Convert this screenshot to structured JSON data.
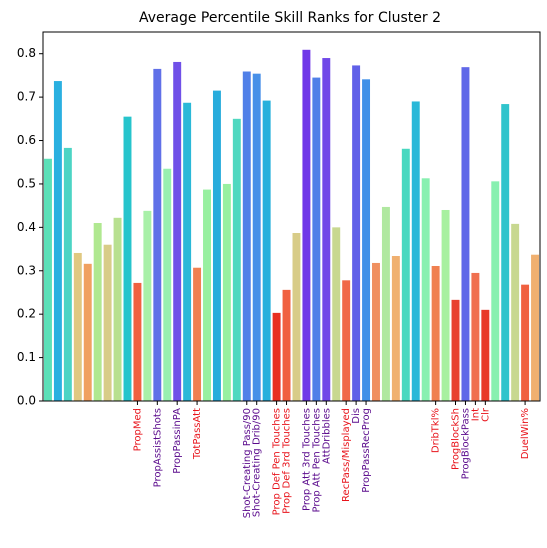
{
  "chart_data": {
    "type": "bar",
    "title": "Average Percentile Skill Ranks for Cluster 2",
    "categories": [
      null,
      null,
      null,
      null,
      null,
      null,
      null,
      null,
      null,
      "PropMed",
      null,
      "PropAssistShots",
      null,
      "PropPassinPA",
      null,
      "TotPassAtt",
      null,
      null,
      null,
      null,
      "Shot-Creating Pass/90",
      "Shot-Creating Drib/90",
      null,
      "Prop Def Pen Touches",
      "Prop Def 3rd Touches",
      null,
      "Prop Att 3rd Touches",
      "Prop Att Pen Touches",
      "AttDribbles",
      null,
      "RecPass/Misplayed",
      "Dis",
      "PropPassRecProg",
      null,
      null,
      null,
      null,
      null,
      null,
      "DribTkl%",
      null,
      "ProgBlockSh",
      "ProgBlockPass",
      "Int",
      "Clr",
      null,
      null,
      null,
      "DuelWin%",
      null
    ],
    "label_colors": [
      null,
      null,
      null,
      null,
      null,
      null,
      null,
      null,
      null,
      "#e8141c",
      null,
      "#5a0a8c",
      null,
      "#5a0a8c",
      null,
      "#e8141c",
      null,
      null,
      null,
      null,
      "#5a0a8c",
      "#5a0a8c",
      null,
      "#e8141c",
      "#e8141c",
      null,
      "#5a0a8c",
      "#5a0a8c",
      "#5a0a8c",
      null,
      "#e8141c",
      "#5a0a8c",
      "#5a0a8c",
      null,
      null,
      null,
      null,
      null,
      null,
      "#e8141c",
      null,
      "#e8141c",
      "#5a0a8c",
      "#e8141c",
      "#e8141c",
      null,
      null,
      null,
      "#e8141c",
      null
    ],
    "values": [
      0.558,
      0.737,
      0.583,
      0.341,
      0.316,
      0.41,
      0.36,
      0.422,
      0.655,
      0.272,
      0.438,
      0.765,
      0.535,
      0.781,
      0.687,
      0.307,
      0.487,
      0.715,
      0.5,
      0.65,
      0.759,
      0.754,
      0.692,
      0.203,
      0.256,
      0.387,
      0.809,
      0.745,
      0.79,
      0.4,
      0.278,
      0.773,
      0.741,
      0.318,
      0.447,
      0.334,
      0.581,
      0.69,
      0.513,
      0.311,
      0.44,
      0.233,
      0.769,
      0.295,
      0.21,
      0.506,
      0.684,
      0.408,
      0.268,
      0.337
    ],
    "colors": [
      "#5ce0b8",
      "#2ab0e0",
      "#4cd4c4",
      "#e0c880",
      "#f0a060",
      "#b0e890",
      "#d8cc88",
      "#b8e090",
      "#26c4cc",
      "#f06040",
      "#a8f0a8",
      "#6070e8",
      "#98f0b0",
      "#7050e8",
      "#2ab8d8",
      "#f08050",
      "#98f0a0",
      "#28acdc",
      "#98f0a0",
      "#50d8c0",
      "#5080e8",
      "#4890e8",
      "#28b0dc",
      "#e83020",
      "#f06040",
      "#d8cc88",
      "#7038e8",
      "#5080e8",
      "#7048e8",
      "#c8d890",
      "#f06848",
      "#6060e8",
      "#4090e8",
      "#f09060",
      "#b0e8a0",
      "#f0b070",
      "#48d8c0",
      "#2ab8d8",
      "#88f0b0",
      "#f08050",
      "#a8f0a0",
      "#e84030",
      "#6068e8",
      "#f07050",
      "#e83828",
      "#88f0b0",
      "#30c4cc",
      "#c8d890",
      "#f06040",
      "#f0b070"
    ],
    "ylim": [
      0,
      0.85
    ],
    "yticks": [
      {
        "value": 0,
        "label": "0.0"
      },
      0.1,
      0.2,
      0.3,
      0.4,
      0.5,
      0.6,
      0.7,
      0.8
    ],
    "grid": false
  }
}
